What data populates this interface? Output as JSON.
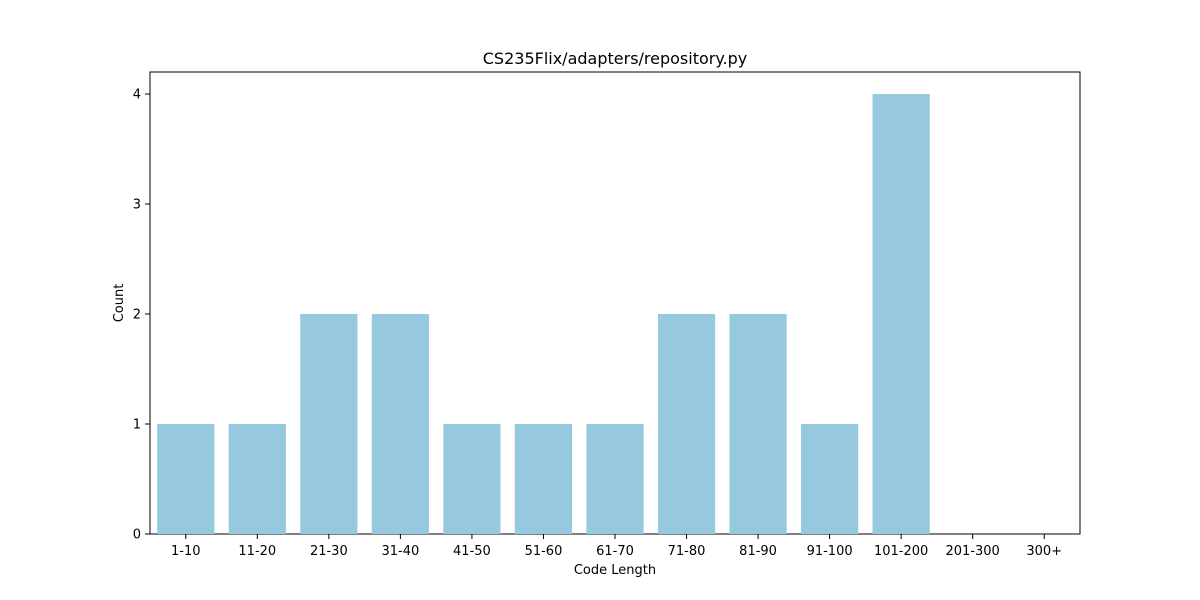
{
  "chart_data": {
    "type": "bar",
    "title": "CS235Flix/adapters/repository.py",
    "xlabel": "Code Length",
    "ylabel": "Count",
    "categories": [
      "1-10",
      "11-20",
      "21-30",
      "31-40",
      "41-50",
      "51-60",
      "61-70",
      "71-80",
      "81-90",
      "91-100",
      "101-200",
      "201-300",
      "300+"
    ],
    "values": [
      1,
      1,
      2,
      2,
      1,
      1,
      1,
      2,
      2,
      1,
      4,
      0,
      0
    ],
    "ylim": [
      0,
      4.2
    ],
    "yticks": [
      0,
      1,
      2,
      3,
      4
    ],
    "bar_color": "#96c9df",
    "grid": false,
    "legend": "none"
  }
}
